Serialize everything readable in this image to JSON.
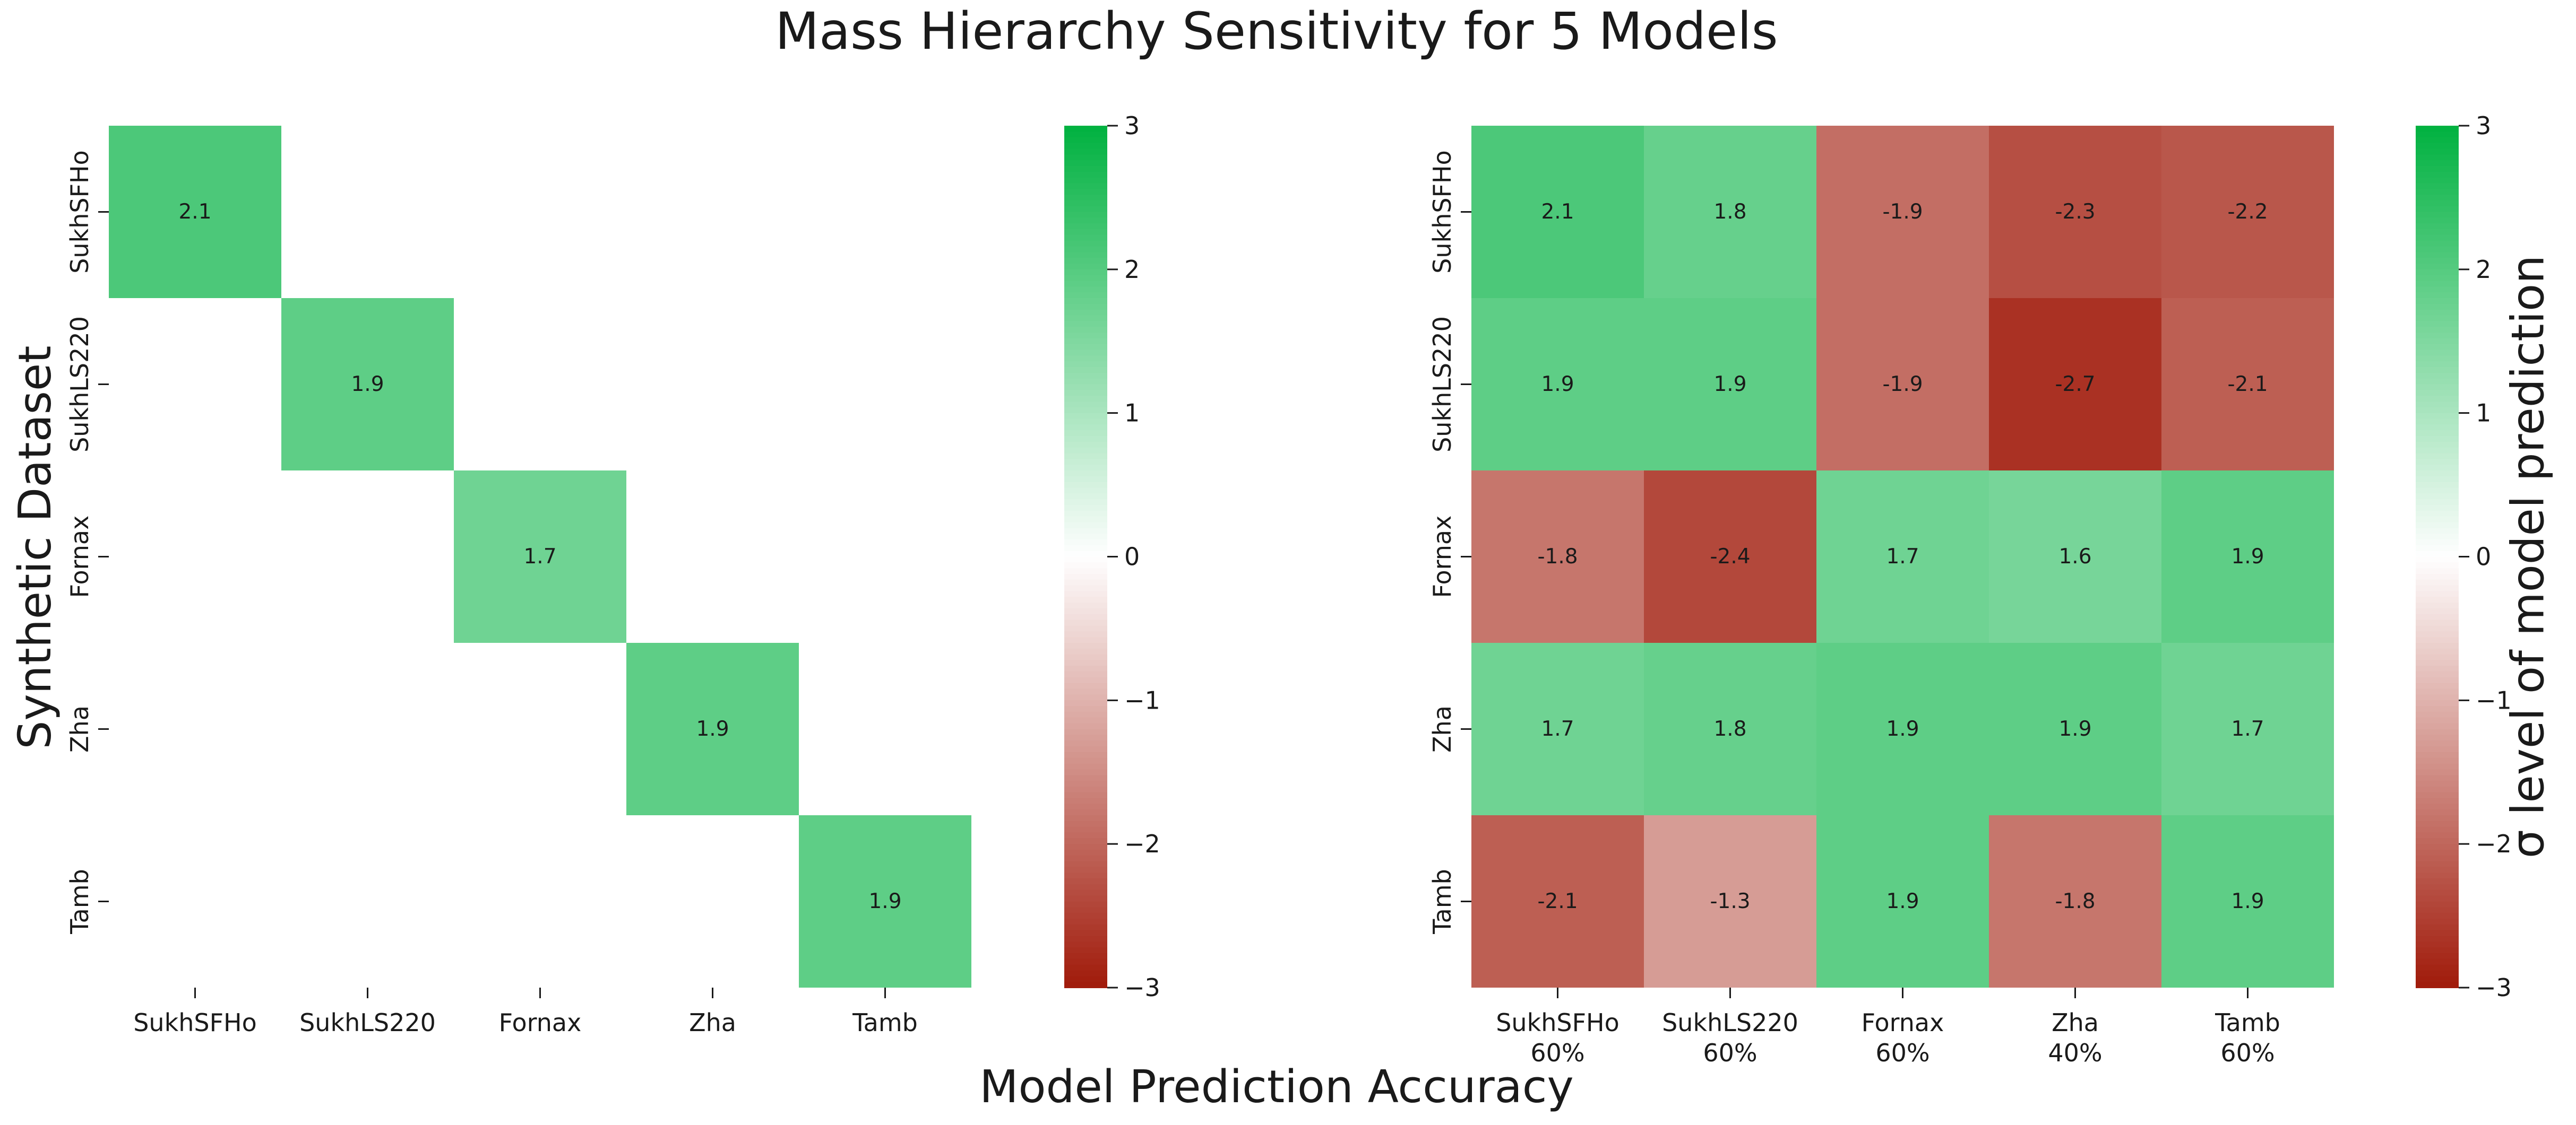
{
  "figure": {
    "title": "Mass Hierarchy Sensitivity for 5 Models",
    "ylabel": "Synthetic Dataset",
    "xlabel": "Model Prediction Accuracy",
    "colorbar_label": "σ level of model prediction"
  },
  "colors": {
    "high": "#00b140",
    "mid": "#ffffff",
    "low": "#a01a0a"
  },
  "chart_data": [
    {
      "type": "heatmap",
      "rows": [
        "SukhSFHo",
        "SukhLS220",
        "Fornax",
        "Zha",
        "Tamb"
      ],
      "cols": [
        "SukhSFHo",
        "SukhLS220",
        "Fornax",
        "Zha",
        "Tamb"
      ],
      "col_sublabels": [],
      "values": [
        [
          2.1,
          null,
          null,
          null,
          null
        ],
        [
          null,
          1.9,
          null,
          null,
          null
        ],
        [
          null,
          null,
          1.7,
          null,
          null
        ],
        [
          null,
          null,
          null,
          1.9,
          null
        ],
        [
          null,
          null,
          null,
          null,
          1.9
        ]
      ],
      "vmin": -3,
      "vmax": 3,
      "colorbar_ticks": [
        "3",
        "2",
        "1",
        "0",
        "−1",
        "−2",
        "−3"
      ],
      "colorbar_label": ""
    },
    {
      "type": "heatmap",
      "rows": [
        "SukhSFHo",
        "SukhLS220",
        "Fornax",
        "Zha",
        "Tamb"
      ],
      "cols": [
        "SukhSFHo",
        "SukhLS220",
        "Fornax",
        "Zha",
        "Tamb"
      ],
      "col_sublabels": [
        "60%",
        "60%",
        "60%",
        "40%",
        "60%"
      ],
      "values": [
        [
          2.1,
          1.8,
          -1.9,
          -2.3,
          -2.2
        ],
        [
          1.9,
          1.9,
          -1.9,
          -2.7,
          -2.1
        ],
        [
          -1.8,
          -2.4,
          1.7,
          1.6,
          1.9
        ],
        [
          1.7,
          1.8,
          1.9,
          1.9,
          1.7
        ],
        [
          -2.1,
          -1.3,
          1.9,
          -1.8,
          1.9
        ]
      ],
      "vmin": -3,
      "vmax": 3,
      "colorbar_ticks": [
        "3",
        "2",
        "1",
        "0",
        "−1",
        "−2",
        "−3"
      ],
      "colorbar_label": "σ level of model prediction"
    }
  ]
}
